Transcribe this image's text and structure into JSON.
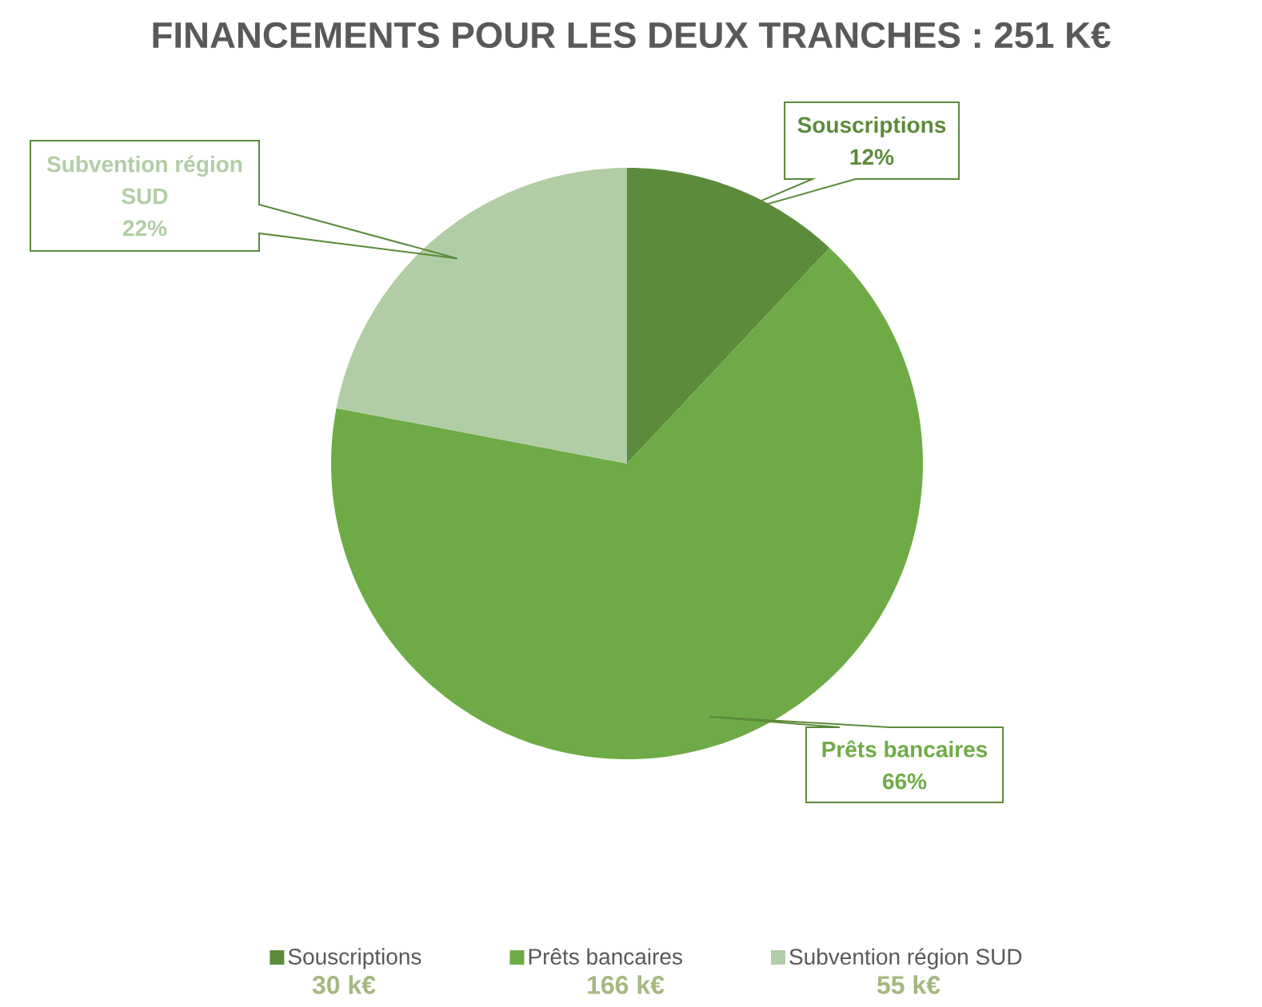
{
  "chart_data": {
    "type": "pie",
    "title": "FINANCEMENTS POUR LES DEUX TRANCHES : 251 K€",
    "categories": [
      "Souscriptions",
      "Prêts bancaires",
      "Subvention région SUD"
    ],
    "values": [
      12,
      66,
      22
    ],
    "colors": [
      "#5b8b3b",
      "#6eab46",
      "#b1cda5"
    ],
    "value_labels": [
      "12%",
      "66%",
      "22%"
    ],
    "annotations": [
      "30 k€",
      "166 k€",
      "55 k€"
    ],
    "legend": "bottom"
  }
}
